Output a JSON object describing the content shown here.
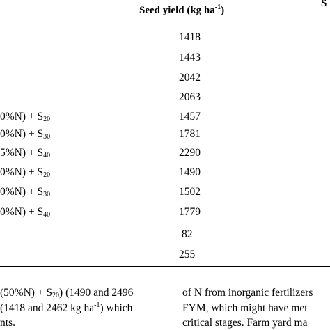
{
  "table": {
    "header": {
      "seed_yield_main": "Seed yield (kg ha",
      "seed_yield_sup": "-1",
      "seed_yield_close": ")",
      "right_clip": "S"
    },
    "rows": [
      {
        "treatment": "",
        "treatment_sub": "",
        "value": "1418"
      },
      {
        "treatment": "",
        "treatment_sub": "",
        "value": "1443"
      },
      {
        "treatment": "",
        "treatment_sub": "",
        "value": "2042"
      },
      {
        "treatment": "",
        "treatment_sub": "",
        "value": "2063"
      },
      {
        "treatment": "0%N) + S",
        "treatment_sub": "20",
        "value": "1457"
      },
      {
        "treatment": "0%N) + S",
        "treatment_sub": "30",
        "value": "1781"
      },
      {
        "treatment": "5%N) + S",
        "treatment_sub": "40",
        "value": "2290"
      },
      {
        "treatment": "0%N) + S",
        "treatment_sub": "20",
        "value": "1490"
      },
      {
        "treatment": "0%N) + S",
        "treatment_sub": "30",
        "value": "1502"
      },
      {
        "treatment": "0%N) + S",
        "treatment_sub": "40",
        "value": "1779"
      },
      {
        "treatment": "",
        "treatment_sub": "",
        "value": "82"
      },
      {
        "treatment": "",
        "treatment_sub": "",
        "value": "255"
      }
    ]
  },
  "paragraph_left": {
    "line1_a": "(50%N) + S",
    "line1_sub": "20",
    "line1_b": ") (1490 and 2496",
    "line2_a": "(1418 and 2462 kg ha",
    "line2_sup": "-1",
    "line2_b": ") which",
    "line3": "nts."
  },
  "paragraph_right": {
    "line1": "of N from inorganic fertilizers",
    "line2": "FYM, which might have met",
    "line3": "critical stages. Farm yard ma"
  }
}
